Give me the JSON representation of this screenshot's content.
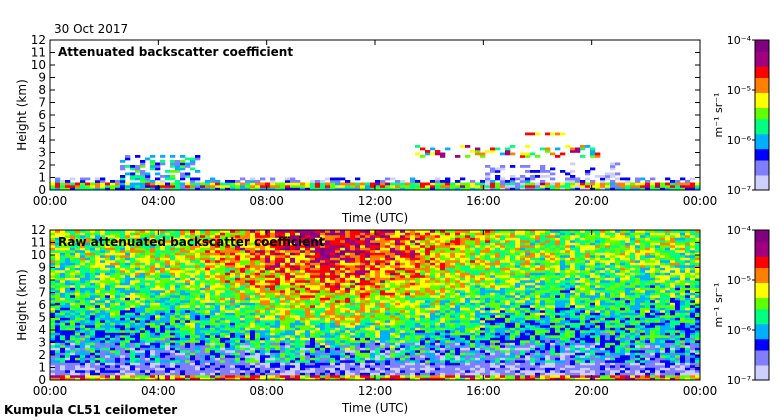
{
  "header": {
    "date": "30 Oct 2017"
  },
  "footer": {
    "instrument": "Kumpula CL51 ceilometer"
  },
  "chart_data": [
    {
      "type": "heatmap",
      "title": "Attenuated backscatter coefficient",
      "xlabel": "Time (UTC)",
      "ylabel": "Height (km)",
      "x_ticks": [
        "00:00",
        "04:00",
        "08:00",
        "12:00",
        "16:00",
        "20:00",
        "00:00"
      ],
      "y_ticks": [
        "0",
        "1",
        "2",
        "3",
        "4",
        "5",
        "6",
        "7",
        "8",
        "9",
        "10",
        "11",
        "12"
      ],
      "ylim": [
        0,
        12
      ],
      "colorbar": {
        "label": "m⁻¹ sr⁻¹",
        "scale": "log",
        "ticks": [
          "10⁻⁷",
          "10⁻⁶",
          "10⁻⁵",
          "10⁻⁴"
        ],
        "range": [
          1e-07,
          0.0001
        ]
      },
      "features": [
        {
          "name": "surface layer",
          "hours": [
            0,
            24
          ],
          "height_km": [
            0,
            0.7
          ]
        },
        {
          "name": "low cloud",
          "hours": [
            2.5,
            5.5
          ],
          "height_km": [
            0.3,
            2.8
          ]
        },
        {
          "name": "mid-level cloud",
          "hours": [
            13.5,
            20.5
          ],
          "height_km": [
            2.6,
            4.6
          ]
        }
      ]
    },
    {
      "type": "heatmap",
      "title": "Raw attenuated backscatter coefficient",
      "xlabel": "Time (UTC)",
      "ylabel": "Height (km)",
      "x_ticks": [
        "00:00",
        "04:00",
        "08:00",
        "12:00",
        "16:00",
        "20:00",
        "00:00"
      ],
      "y_ticks": [
        "0",
        "1",
        "2",
        "3",
        "4",
        "5",
        "6",
        "7",
        "8",
        "9",
        "10",
        "11",
        "12"
      ],
      "ylim": [
        0,
        12
      ],
      "colorbar": {
        "label": "m⁻¹ sr⁻¹",
        "scale": "log",
        "ticks": [
          "10⁻⁷",
          "10⁻⁶",
          "10⁻⁵",
          "10⁻⁴"
        ],
        "range": [
          1e-07,
          0.0001
        ]
      }
    }
  ],
  "colors": [
    "#cfcfff",
    "#7f7fff",
    "#0000ff",
    "#00b0ff",
    "#00ff80",
    "#60ff00",
    "#ffff00",
    "#ff8000",
    "#ff0000",
    "#a00080",
    "#800080"
  ]
}
